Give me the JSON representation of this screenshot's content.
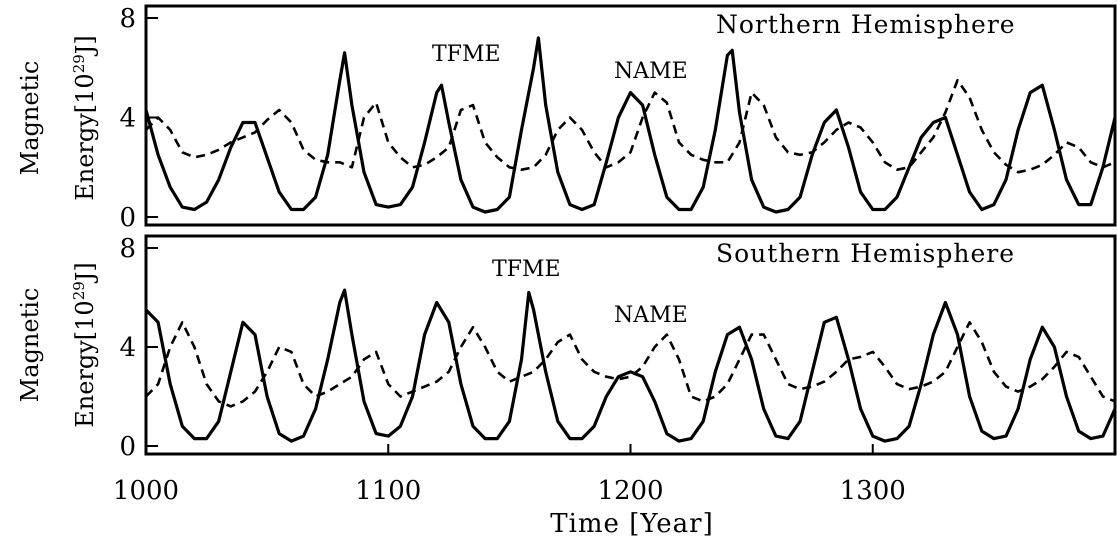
{
  "chart_data": [
    {
      "type": "line",
      "title": "Northern Hemisphere",
      "ylabel_line1": "Magnetic",
      "ylabel_line2": "Energy[10",
      "ylabel_exp": "29",
      "ylabel_unit": "J]",
      "ylim": [
        0,
        8
      ],
      "yticks": [
        "0",
        "4",
        "8"
      ],
      "xlim": [
        1000,
        1400
      ],
      "annotations": [
        {
          "text": "TFME",
          "x": 1120,
          "y": 7.2
        },
        {
          "text": "NAME",
          "x": 1201,
          "y": 6.1
        }
      ],
      "series": [
        {
          "style": "solid",
          "x": [
            1000,
            1005,
            1010,
            1015,
            1020,
            1025,
            1030,
            1035,
            1040,
            1045,
            1050,
            1055,
            1060,
            1065,
            1070,
            1075,
            1080,
            1082,
            1085,
            1090,
            1095,
            1100,
            1105,
            1110,
            1115,
            1120,
            1122,
            1125,
            1130,
            1135,
            1140,
            1145,
            1150,
            1155,
            1160,
            1162,
            1165,
            1170,
            1175,
            1180,
            1185,
            1190,
            1195,
            1200,
            1205,
            1210,
            1215,
            1220,
            1225,
            1230,
            1235,
            1240,
            1242,
            1245,
            1250,
            1255,
            1260,
            1265,
            1270,
            1275,
            1280,
            1285,
            1290,
            1295,
            1300,
            1305,
            1310,
            1315,
            1320,
            1325,
            1330,
            1335,
            1340,
            1345,
            1350,
            1355,
            1360,
            1365,
            1370,
            1375,
            1380,
            1385,
            1390,
            1395,
            1400
          ],
          "y": [
            4.3,
            2.5,
            1.2,
            0.4,
            0.3,
            0.6,
            1.5,
            2.8,
            3.8,
            3.8,
            2.4,
            1.0,
            0.3,
            0.3,
            0.8,
            2.5,
            5.5,
            6.6,
            4.5,
            1.8,
            0.5,
            0.4,
            0.5,
            1.2,
            3.0,
            5.0,
            5.3,
            3.8,
            1.5,
            0.4,
            0.2,
            0.3,
            0.8,
            3.5,
            6.0,
            7.2,
            4.5,
            1.8,
            0.5,
            0.3,
            0.5,
            2.2,
            4.0,
            5.0,
            4.5,
            2.5,
            0.8,
            0.3,
            0.3,
            1.2,
            3.5,
            6.5,
            6.7,
            4.2,
            1.5,
            0.4,
            0.2,
            0.3,
            0.8,
            2.5,
            3.8,
            4.3,
            2.8,
            1.0,
            0.3,
            0.3,
            0.8,
            2.0,
            3.2,
            3.8,
            4.0,
            2.5,
            1.0,
            0.3,
            0.5,
            1.5,
            3.5,
            5.0,
            5.3,
            3.5,
            1.5,
            0.5,
            0.5,
            2.0,
            4.0
          ]
        },
        {
          "style": "dashed",
          "x": [
            1000,
            1005,
            1010,
            1015,
            1020,
            1025,
            1030,
            1035,
            1040,
            1045,
            1050,
            1055,
            1060,
            1065,
            1070,
            1075,
            1080,
            1085,
            1090,
            1095,
            1100,
            1105,
            1110,
            1115,
            1120,
            1125,
            1130,
            1135,
            1140,
            1145,
            1150,
            1155,
            1160,
            1165,
            1170,
            1175,
            1180,
            1185,
            1190,
            1195,
            1200,
            1205,
            1210,
            1215,
            1220,
            1225,
            1230,
            1235,
            1240,
            1245,
            1250,
            1255,
            1260,
            1265,
            1270,
            1275,
            1280,
            1285,
            1290,
            1295,
            1300,
            1305,
            1310,
            1315,
            1320,
            1325,
            1330,
            1335,
            1340,
            1345,
            1350,
            1355,
            1360,
            1365,
            1370,
            1375,
            1380,
            1385,
            1390,
            1395,
            1400
          ],
          "y": [
            3.5,
            4.0,
            3.5,
            2.6,
            2.4,
            2.5,
            2.7,
            3.0,
            3.2,
            3.4,
            3.9,
            4.3,
            3.8,
            2.7,
            2.3,
            2.2,
            2.2,
            2.0,
            4.0,
            4.6,
            3.0,
            2.4,
            2.0,
            2.1,
            2.4,
            2.8,
            4.3,
            4.5,
            3.0,
            2.4,
            2.0,
            1.9,
            2.0,
            2.5,
            3.5,
            4.0,
            3.5,
            2.6,
            2.0,
            2.2,
            2.6,
            4.0,
            5.0,
            4.6,
            3.0,
            2.5,
            2.3,
            2.2,
            2.2,
            3.0,
            5.0,
            4.5,
            3.2,
            2.6,
            2.5,
            2.6,
            3.0,
            3.5,
            3.8,
            3.6,
            3.0,
            2.2,
            1.9,
            2.0,
            2.6,
            3.2,
            4.2,
            5.5,
            4.8,
            3.5,
            2.6,
            2.1,
            1.8,
            1.9,
            2.1,
            2.5,
            3.0,
            2.8,
            2.2,
            2.0,
            2.2
          ]
        }
      ]
    },
    {
      "type": "line",
      "title": "Southern Hemisphere",
      "ylabel_line1": "Magnetic",
      "ylabel_line2": "Energy[10",
      "ylabel_exp": "29",
      "ylabel_unit": "J]",
      "ylim": [
        0,
        8
      ],
      "yticks": [
        "0",
        "4",
        "8"
      ],
      "xlim": [
        1000,
        1400
      ],
      "xticks": [
        "1000",
        "1100",
        "1200",
        "1300"
      ],
      "xlabel": "Time [Year]",
      "annotations": [
        {
          "text": "TFME",
          "x": 1159,
          "y": 7.0
        },
        {
          "text": "NAME",
          "x": 1208,
          "y": 5.0
        }
      ],
      "series": [
        {
          "style": "solid",
          "x": [
            1000,
            1005,
            1010,
            1015,
            1020,
            1025,
            1030,
            1035,
            1040,
            1045,
            1050,
            1055,
            1060,
            1065,
            1070,
            1075,
            1080,
            1082,
            1085,
            1090,
            1095,
            1100,
            1105,
            1110,
            1115,
            1120,
            1125,
            1130,
            1135,
            1140,
            1145,
            1150,
            1155,
            1158,
            1160,
            1165,
            1170,
            1175,
            1180,
            1185,
            1190,
            1195,
            1200,
            1205,
            1210,
            1215,
            1220,
            1225,
            1230,
            1235,
            1240,
            1245,
            1250,
            1255,
            1260,
            1265,
            1270,
            1275,
            1280,
            1285,
            1290,
            1295,
            1300,
            1305,
            1310,
            1315,
            1320,
            1325,
            1330,
            1335,
            1340,
            1345,
            1350,
            1355,
            1360,
            1365,
            1370,
            1375,
            1380,
            1385,
            1390,
            1395,
            1400
          ],
          "y": [
            5.5,
            5.0,
            2.5,
            0.8,
            0.3,
            0.3,
            1.0,
            3.0,
            5.0,
            4.5,
            2.0,
            0.5,
            0.2,
            0.4,
            1.5,
            3.5,
            5.8,
            6.3,
            4.5,
            1.8,
            0.5,
            0.4,
            0.8,
            2.0,
            4.5,
            5.8,
            5.0,
            2.5,
            0.8,
            0.3,
            0.3,
            1.0,
            3.5,
            6.2,
            5.5,
            3.0,
            1.0,
            0.3,
            0.3,
            0.8,
            2.0,
            2.8,
            3.0,
            2.8,
            1.8,
            0.5,
            0.2,
            0.3,
            1.0,
            3.0,
            4.5,
            4.8,
            3.5,
            1.5,
            0.4,
            0.3,
            1.0,
            3.0,
            5.0,
            5.2,
            3.5,
            1.5,
            0.4,
            0.2,
            0.3,
            0.8,
            2.5,
            4.5,
            5.8,
            4.5,
            2.0,
            0.6,
            0.3,
            0.4,
            1.5,
            3.5,
            4.8,
            4.0,
            2.0,
            0.6,
            0.3,
            0.4,
            1.5
          ]
        },
        {
          "style": "dashed",
          "x": [
            1000,
            1005,
            1010,
            1015,
            1020,
            1025,
            1030,
            1035,
            1040,
            1045,
            1050,
            1055,
            1060,
            1065,
            1070,
            1075,
            1080,
            1085,
            1090,
            1095,
            1100,
            1105,
            1110,
            1115,
            1120,
            1125,
            1130,
            1135,
            1140,
            1145,
            1150,
            1155,
            1160,
            1165,
            1170,
            1175,
            1180,
            1185,
            1190,
            1195,
            1200,
            1205,
            1210,
            1215,
            1220,
            1225,
            1230,
            1235,
            1240,
            1245,
            1250,
            1255,
            1260,
            1265,
            1270,
            1275,
            1280,
            1285,
            1290,
            1295,
            1300,
            1305,
            1310,
            1315,
            1320,
            1325,
            1330,
            1335,
            1340,
            1345,
            1350,
            1355,
            1360,
            1365,
            1370,
            1375,
            1380,
            1385,
            1390,
            1395,
            1400
          ],
          "y": [
            2.0,
            2.5,
            4.0,
            5.0,
            4.0,
            2.5,
            1.8,
            1.6,
            1.8,
            2.2,
            3.0,
            4.0,
            3.8,
            2.5,
            2.0,
            2.2,
            2.5,
            2.8,
            3.5,
            3.8,
            2.5,
            2.0,
            2.2,
            2.4,
            2.6,
            3.0,
            4.0,
            4.8,
            4.0,
            3.0,
            2.6,
            2.8,
            3.0,
            3.5,
            4.2,
            4.5,
            3.5,
            3.0,
            2.8,
            2.7,
            2.8,
            3.2,
            4.0,
            4.5,
            3.5,
            2.0,
            1.8,
            2.0,
            2.5,
            3.5,
            4.5,
            4.5,
            3.5,
            2.5,
            2.3,
            2.4,
            2.6,
            3.0,
            3.5,
            3.6,
            3.8,
            3.2,
            2.5,
            2.3,
            2.4,
            2.6,
            3.0,
            4.0,
            5.0,
            4.2,
            3.0,
            2.4,
            2.2,
            2.4,
            2.7,
            3.2,
            3.8,
            3.6,
            2.8,
            2.0,
            1.8
          ]
        }
      ]
    }
  ]
}
